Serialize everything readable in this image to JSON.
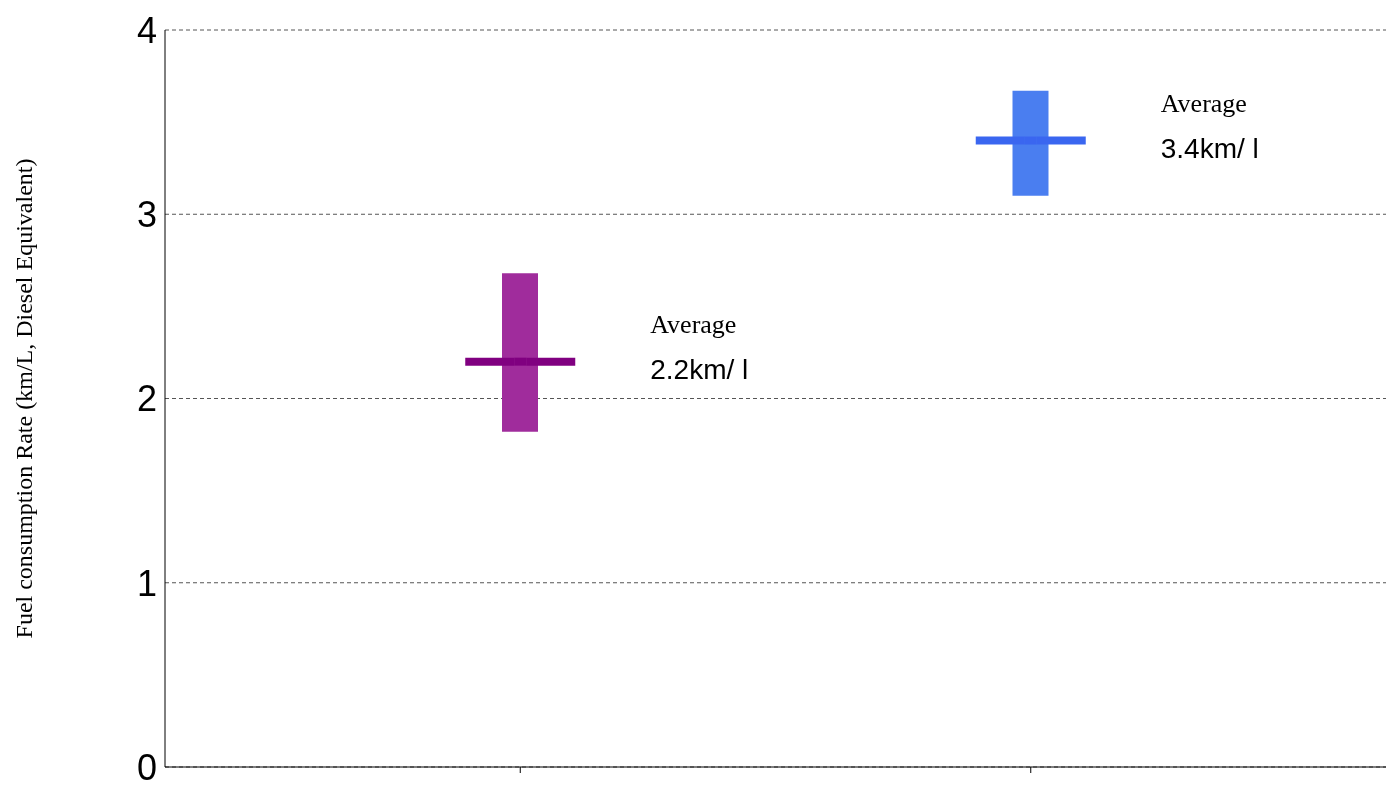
{
  "chart_data": {
    "type": "bar",
    "ylabel": "Fuel consumption Rate (km/L, Diesel Equivalent)",
    "categories": [
      null,
      null
    ],
    "series": [
      {
        "values": [
          0.86,
          0.57
        ],
        "base": [
          1.82,
          3.1
        ],
        "colors": [
          "#a02c9c",
          "#4a7ef0"
        ]
      },
      {
        "type": "scatter",
        "values": [
          2.2,
          3.4
        ],
        "colors": [
          "#800080",
          "#3a66f0"
        ]
      }
    ],
    "annotations": [
      "Average\n2.2km/ l",
      "Average\n3.4km/ l"
    ],
    "ylim": [
      0,
      4
    ],
    "yticks": [
      0,
      1,
      2,
      3,
      4
    ],
    "grid": "y",
    "legend": false
  }
}
